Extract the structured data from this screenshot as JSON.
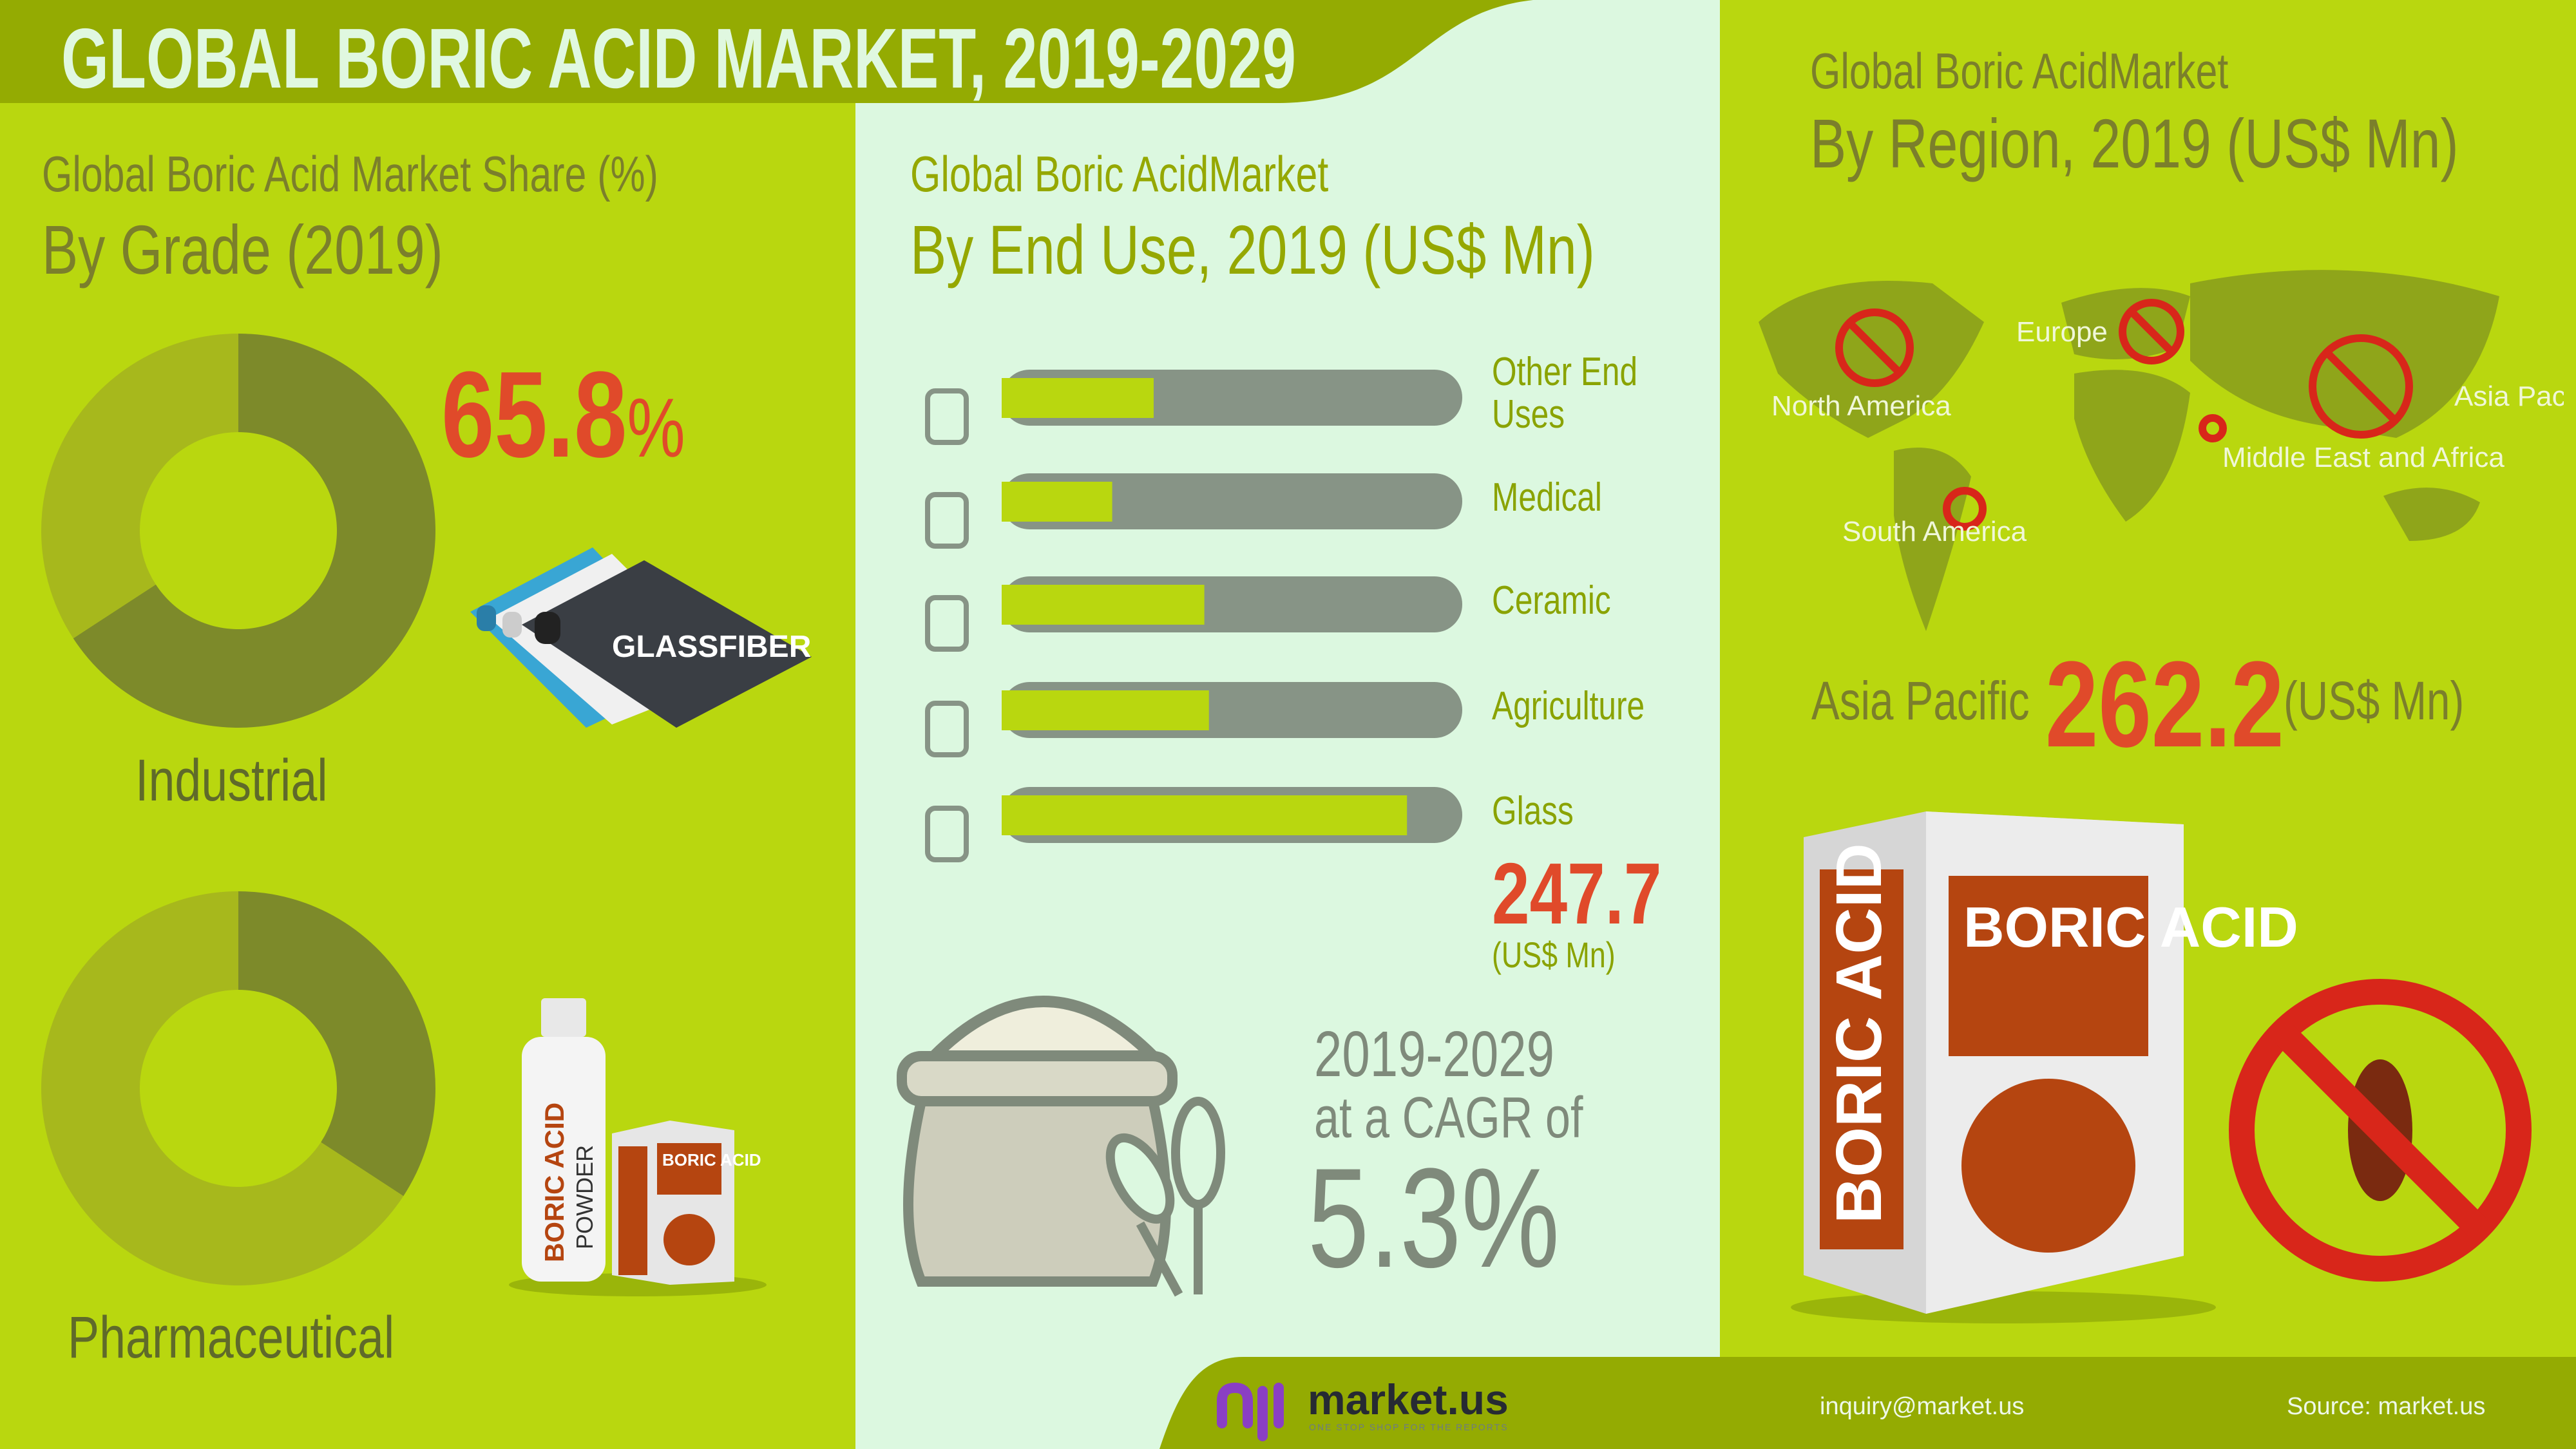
{
  "header": {
    "title": "GLOBAL BORIC ACID MARKET, 2019-2029"
  },
  "colors": {
    "header": "#94ab02",
    "panel_green": "#b9d70f",
    "panel_mint": "#dcf8e0",
    "accent_red": "#e04a2a",
    "bar_fill": "#b9d70f",
    "bar_track": "#879486",
    "donut_dark": "#7d8a2a",
    "donut_light": "#a7b81c"
  },
  "grade": {
    "title_line1": "Global Boric Acid Market Share (%)",
    "title_line2": "By Grade (2019)",
    "highlight_value": "65.8",
    "highlight_unit": "%",
    "glassfiber_label": "GLASSFIBER",
    "bottle_label_1": "BORIC ACID",
    "bottle_label_2": "POWDER",
    "small_box_label": "BORIC ACID",
    "small_box_side": "BORIC ACID"
  },
  "end_use": {
    "title_line1": "Global Boric AcidMarket",
    "title_line2": "By End Use, 2019 (US$ Mn)",
    "highlight_value": "247.7",
    "highlight_unit": "(US$ Mn)"
  },
  "cagr": {
    "period": "2019-2029",
    "label": "at a CAGR of",
    "value": "5.3%"
  },
  "region": {
    "title_line1": "Global Boric AcidMarket",
    "title_line2": "By Region, 2019 (US$ Mn)",
    "map_labels": [
      "North America",
      "Europe",
      "Asia Pacific",
      "Middle East and Africa",
      "South America"
    ],
    "highlight_region": "Asia Pacific",
    "highlight_value": "262.2",
    "highlight_unit": "(US$ Mn)",
    "box_front": "BORIC ACID",
    "box_side": "BORIC ACID"
  },
  "chart_data": [
    {
      "type": "pie",
      "subtype": "donut",
      "title": "Global Boric Acid Market Share (%) By Grade (2019)",
      "categories": [
        "Industrial",
        "Pharmaceutical"
      ],
      "values": [
        65.8,
        34.2
      ],
      "data_labels": [
        "65.8%"
      ]
    },
    {
      "type": "bar",
      "orientation": "horizontal",
      "title": "Global Boric AcidMarket By End Use, 2019 (US$ Mn)",
      "categories": [
        "Other End Uses",
        "Medical",
        "Ceramic",
        "Agriculture",
        "Glass"
      ],
      "relative_fill": [
        0.33,
        0.24,
        0.44,
        0.45,
        0.88
      ],
      "data_labels": {
        "Glass": 247.7
      },
      "unit": "US$ Mn"
    }
  ],
  "footer": {
    "brand": "market.us",
    "tagline": "ONE STOP SHOP FOR THE REPORTS",
    "email": "inquiry@market.us",
    "source": "Source: market.us"
  }
}
